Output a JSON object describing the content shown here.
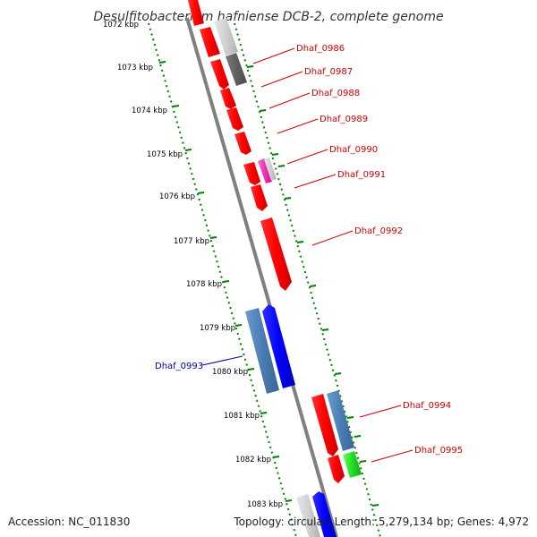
{
  "title": "Desulfitobacterium hafniense DCB-2, complete genome",
  "footer": {
    "accession": "Accession: NC_011830",
    "summary": "Topology: circular; Length: 5,279,134 bp; Genes: 4,972"
  },
  "colors": {
    "backbone": "#808080",
    "tick": "#008000",
    "forward_label": "#cc0000",
    "reverse_label": "#000099"
  },
  "kbp_labels": [
    "1072 kbp",
    "1073 kbp",
    "1074 kbp",
    "1075 kbp",
    "1076 kbp",
    "1077 kbp",
    "1078 kbp",
    "1079 kbp",
    "1080 kbp",
    "1081 kbp",
    "1082 kbp",
    "1083 kbp"
  ],
  "genes": [
    {
      "name": "Dhaf_0986",
      "color": "#cc0000"
    },
    {
      "name": "Dhaf_0987",
      "color": "#cc0000"
    },
    {
      "name": "Dhaf_0988",
      "color": "#cc0000"
    },
    {
      "name": "Dhaf_0989",
      "color": "#cc0000"
    },
    {
      "name": "Dhaf_0990",
      "color": "#cc0000"
    },
    {
      "name": "Dhaf_0991",
      "color": "#cc0000"
    },
    {
      "name": "Dhaf_0992",
      "color": "#cc0000"
    },
    {
      "name": "Dhaf_0993",
      "color": "#000099"
    },
    {
      "name": "Dhaf_0994",
      "color": "#cc0000"
    },
    {
      "name": "Dhaf_0995",
      "color": "#cc0000"
    }
  ]
}
